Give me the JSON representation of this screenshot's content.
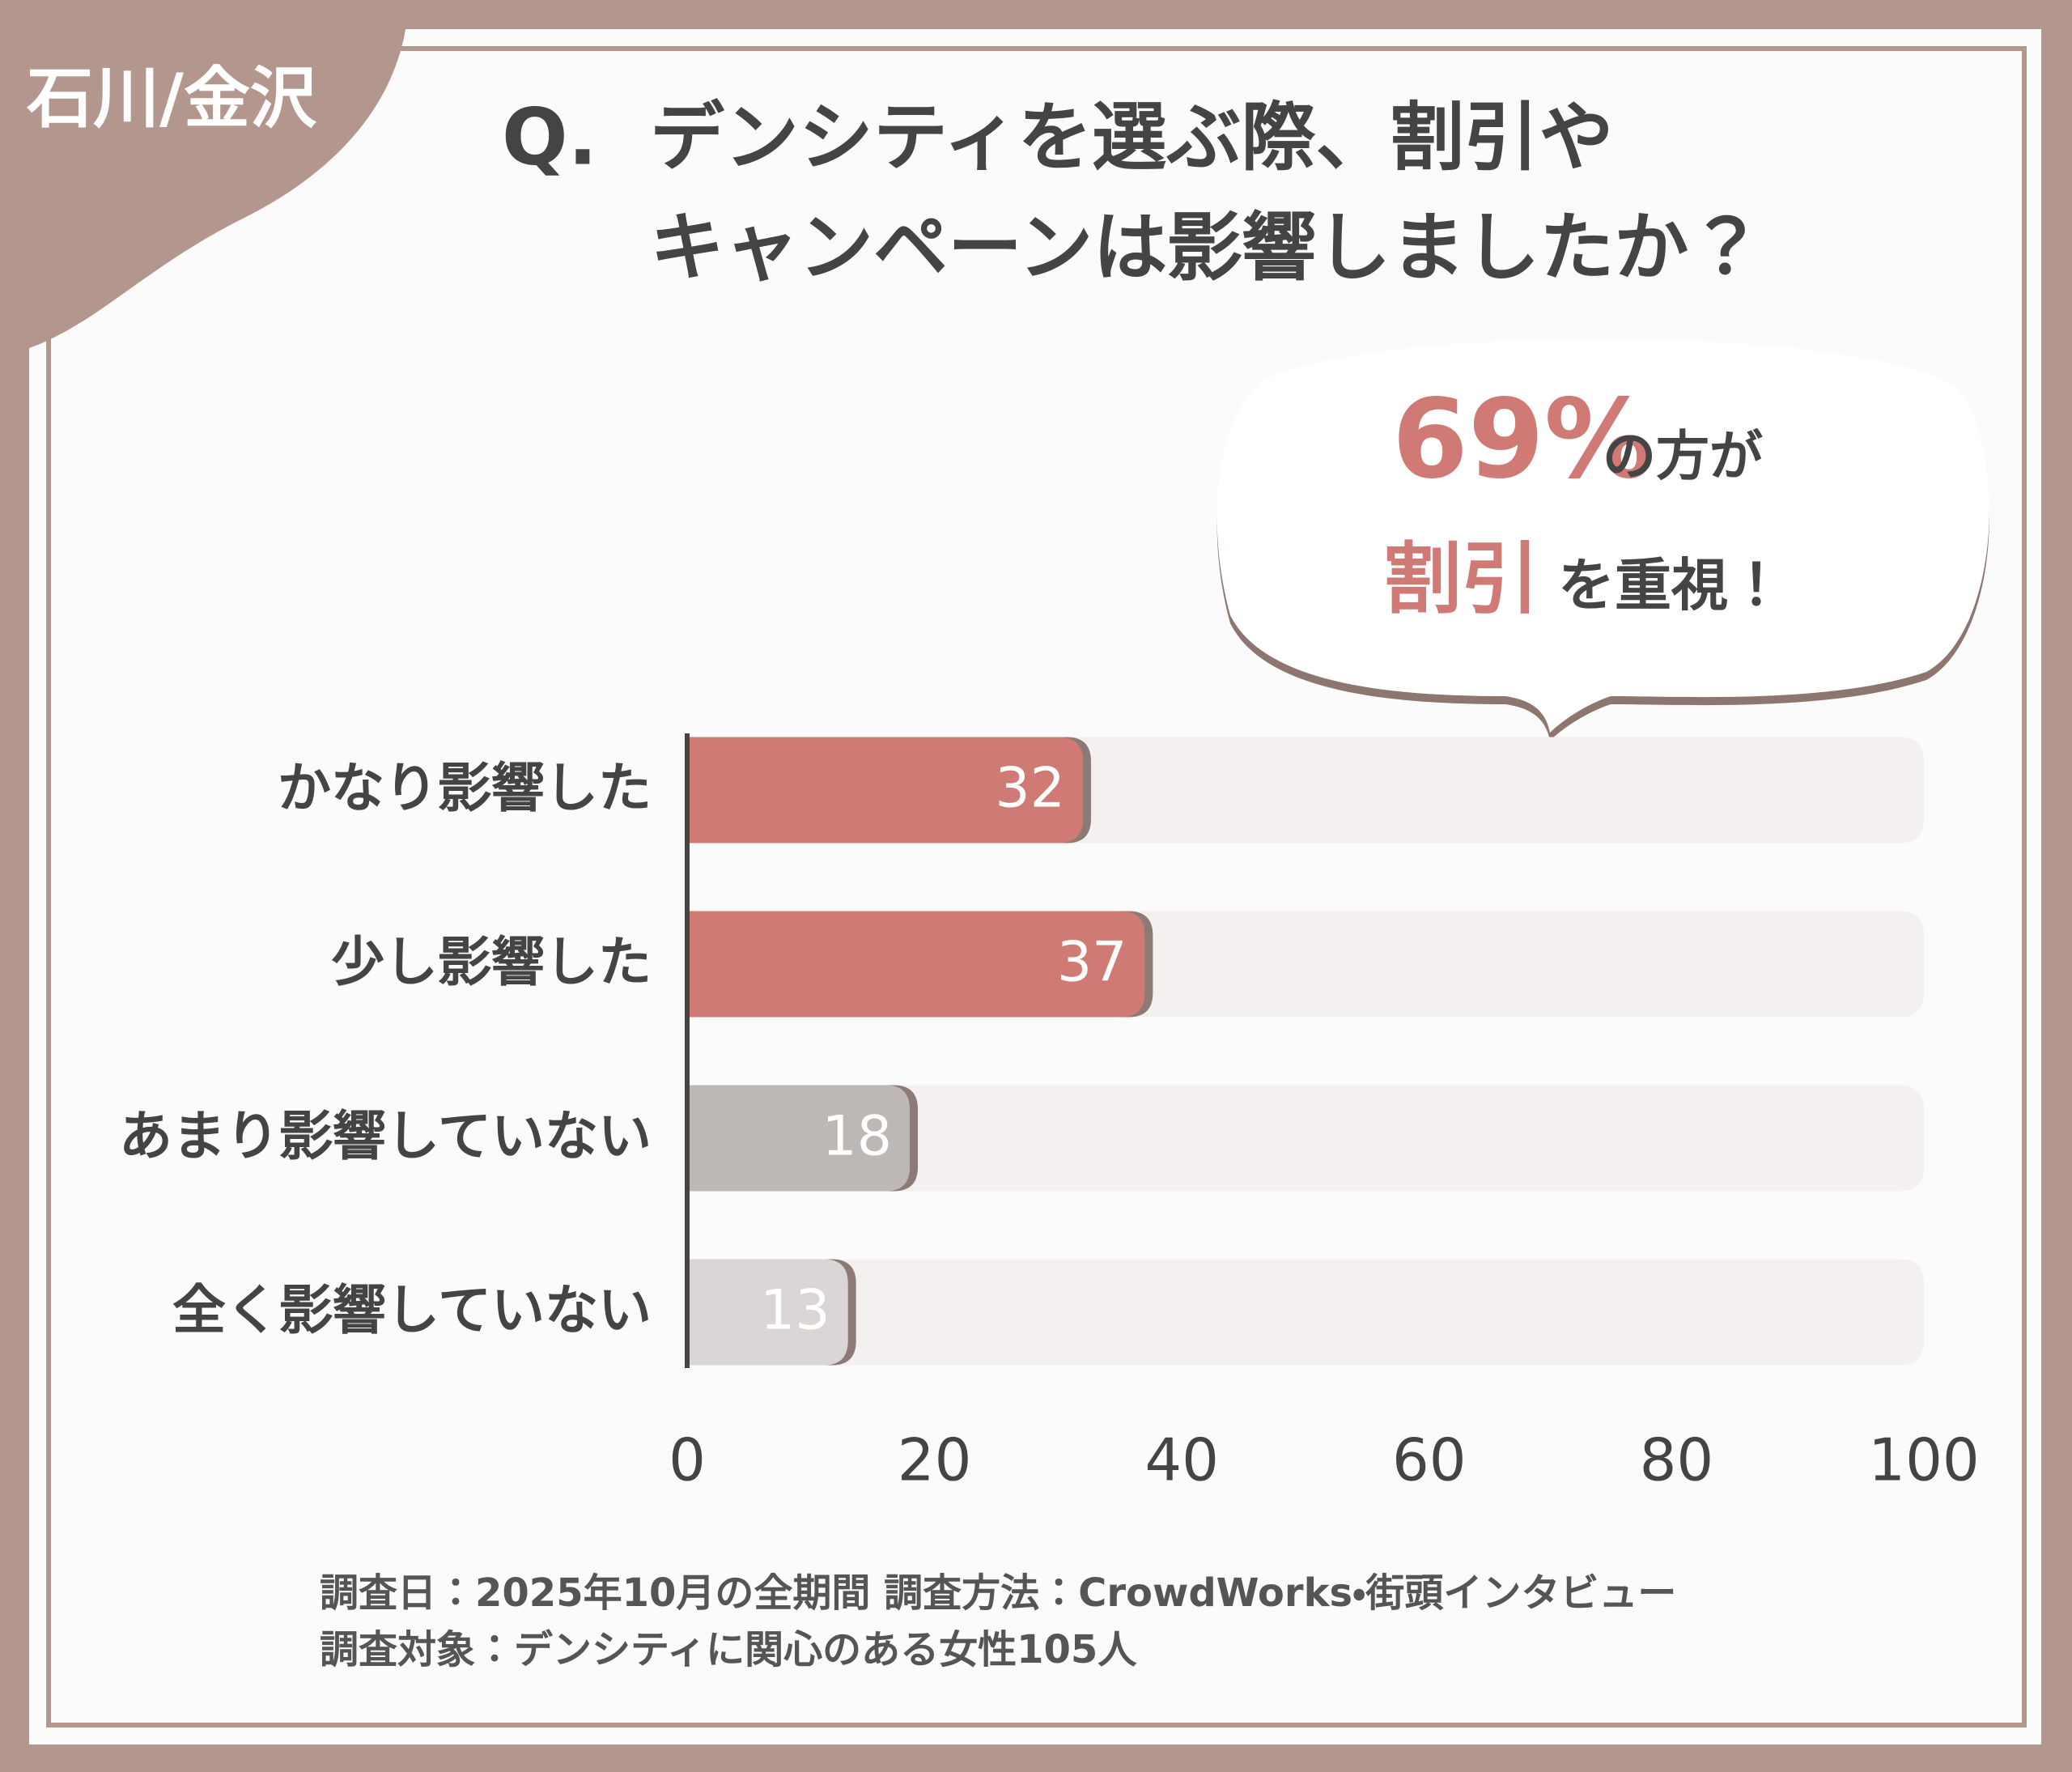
{
  "chart_data": {
    "type": "hbar",
    "tag": "石川/金沢",
    "question_label": "Q.",
    "title_lines": [
      "デンシティを選ぶ際、割引や",
      "キャンペーンは影響しましたか？"
    ],
    "callout": {
      "highlight": "69%",
      "text1": "の方が",
      "highlight2": "割引",
      "text2": "を重視！"
    },
    "categories": [
      "かなり影響した",
      "少し影響した",
      "あまり影響していない",
      "全く影響していない"
    ],
    "values": [
      32,
      37,
      18,
      13
    ],
    "colors": [
      "#d07a76",
      "#d07a76",
      "#bdb8b6",
      "#d9d6d5"
    ],
    "xlim": [
      0,
      100
    ],
    "xticks": [
      0,
      20,
      40,
      60,
      80,
      100
    ],
    "footnotes": [
      "調査日：2025年10月の全期間 調査方法：CrowdWorks・街頭インタビュー",
      "調査対象：デンシティに関心のある女性105人"
    ]
  }
}
